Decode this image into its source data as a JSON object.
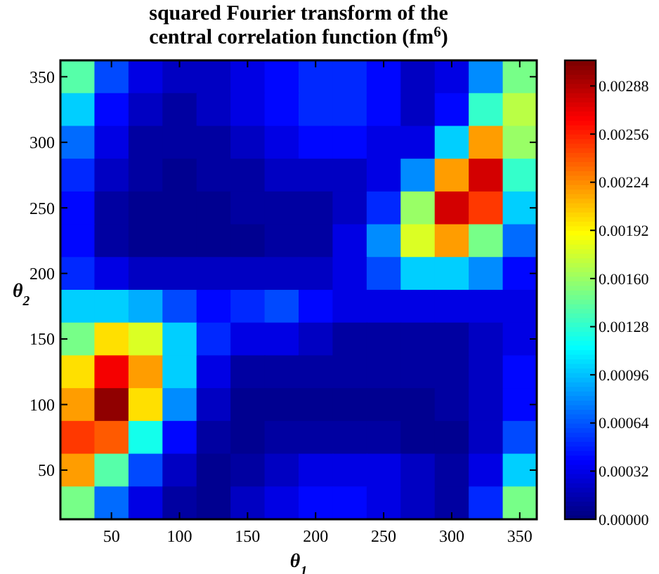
{
  "chart_data": {
    "type": "heatmap",
    "title": "squared Fourier transform of the\ncentral correlation function (fm$^{6}$)",
    "xlabel": "θ$_{1}$",
    "ylabel": "θ$_{2}$",
    "categories": [
      null,
      "50",
      null,
      "100",
      null,
      "150",
      null,
      "200",
      null,
      "250",
      null,
      "300",
      null,
      "350"
    ],
    "y_categories": [
      "350",
      null,
      "300",
      null,
      "250",
      null,
      "200",
      null,
      "150",
      null,
      "100",
      null,
      "50",
      null
    ],
    "clim": [
      0,
      0.00305
    ],
    "cticks": [
      {
        "value": 0,
        "label": "0.00000"
      },
      {
        "value": 0.00032,
        "label": "0.00032"
      },
      {
        "value": 0.00064,
        "label": "0.00064"
      },
      {
        "value": 0.00096,
        "label": "0.00096"
      },
      {
        "value": 0.00128,
        "label": "0.00128"
      },
      {
        "value": 0.0016,
        "label": "0.00160"
      },
      {
        "value": 0.00192,
        "label": "0.00192"
      },
      {
        "value": 0.00224,
        "label": "0.00224"
      },
      {
        "value": 0.00256,
        "label": "0.00256"
      },
      {
        "value": 0.00288,
        "label": "0.00288"
      }
    ],
    "cells": [
      [
        0.0014,
        0.0006,
        0.0003,
        0.0002,
        0.0002,
        0.0003,
        0.0004,
        0.0005,
        0.0005,
        0.0004,
        0.0002,
        0.0003,
        0.0008,
        0.0015
      ],
      [
        0.001,
        0.0004,
        0.0002,
        0.0001,
        0.0002,
        0.0003,
        0.0004,
        0.0005,
        0.0005,
        0.0004,
        0.0002,
        0.0004,
        0.0013,
        0.0017
      ],
      [
        0.0007,
        0.0003,
        0.0001,
        0.0001,
        0.0001,
        0.0002,
        0.0003,
        0.0004,
        0.0004,
        0.0003,
        0.0003,
        0.001,
        0.0022,
        0.0016
      ],
      [
        0.0005,
        0.0002,
        0.0001,
        5e-05,
        0.0001,
        0.0001,
        0.0002,
        0.0002,
        0.0002,
        0.0003,
        0.0008,
        0.0022,
        0.0028,
        0.0013
      ],
      [
        0.0004,
        0.0001,
        5e-05,
        5e-05,
        5e-05,
        0.0001,
        0.0001,
        0.0001,
        0.0002,
        0.0005,
        0.0016,
        0.0028,
        0.0025,
        0.001
      ],
      [
        0.0004,
        0.0001,
        5e-05,
        5e-05,
        5e-05,
        5e-05,
        0.0001,
        0.0001,
        0.0003,
        0.0008,
        0.0018,
        0.0022,
        0.0015,
        0.0007
      ],
      [
        0.0005,
        0.0003,
        0.0002,
        0.0002,
        0.0002,
        0.0002,
        0.0002,
        0.0002,
        0.0003,
        0.0006,
        0.001,
        0.001,
        0.0008,
        0.0004
      ],
      [
        0.001,
        0.001,
        0.0009,
        0.0006,
        0.0004,
        0.0005,
        0.0006,
        0.0004,
        0.0003,
        0.0003,
        0.0003,
        0.0003,
        0.0003,
        0.0003
      ],
      [
        0.0015,
        0.002,
        0.0018,
        0.001,
        0.0005,
        0.0003,
        0.0003,
        0.0002,
        0.0001,
        0.0001,
        0.0001,
        0.0001,
        0.0002,
        0.0003
      ],
      [
        0.002,
        0.0027,
        0.0022,
        0.001,
        0.0003,
        0.0001,
        0.0001,
        0.0001,
        0.0001,
        0.0001,
        0.0001,
        0.0001,
        0.0002,
        0.0004
      ],
      [
        0.0022,
        0.003,
        0.002,
        0.0008,
        0.0002,
        5e-05,
        5e-05,
        5e-05,
        5e-05,
        5e-05,
        5e-05,
        0.0001,
        0.0002,
        0.0004
      ],
      [
        0.0025,
        0.0024,
        0.0012,
        0.0004,
        0.0001,
        5e-05,
        0.0001,
        0.0001,
        0.0001,
        0.0001,
        5e-05,
        5e-05,
        0.0002,
        0.0006
      ],
      [
        0.0022,
        0.0014,
        0.0006,
        0.0002,
        5e-05,
        0.0001,
        0.0002,
        0.0003,
        0.0003,
        0.0003,
        0.0002,
        0.0001,
        0.0003,
        0.001
      ],
      [
        0.0015,
        0.0007,
        0.0003,
        0.0001,
        5e-05,
        0.0002,
        0.0003,
        0.0004,
        0.0004,
        0.0003,
        0.0002,
        0.0001,
        0.0005,
        0.0015
      ]
    ]
  }
}
